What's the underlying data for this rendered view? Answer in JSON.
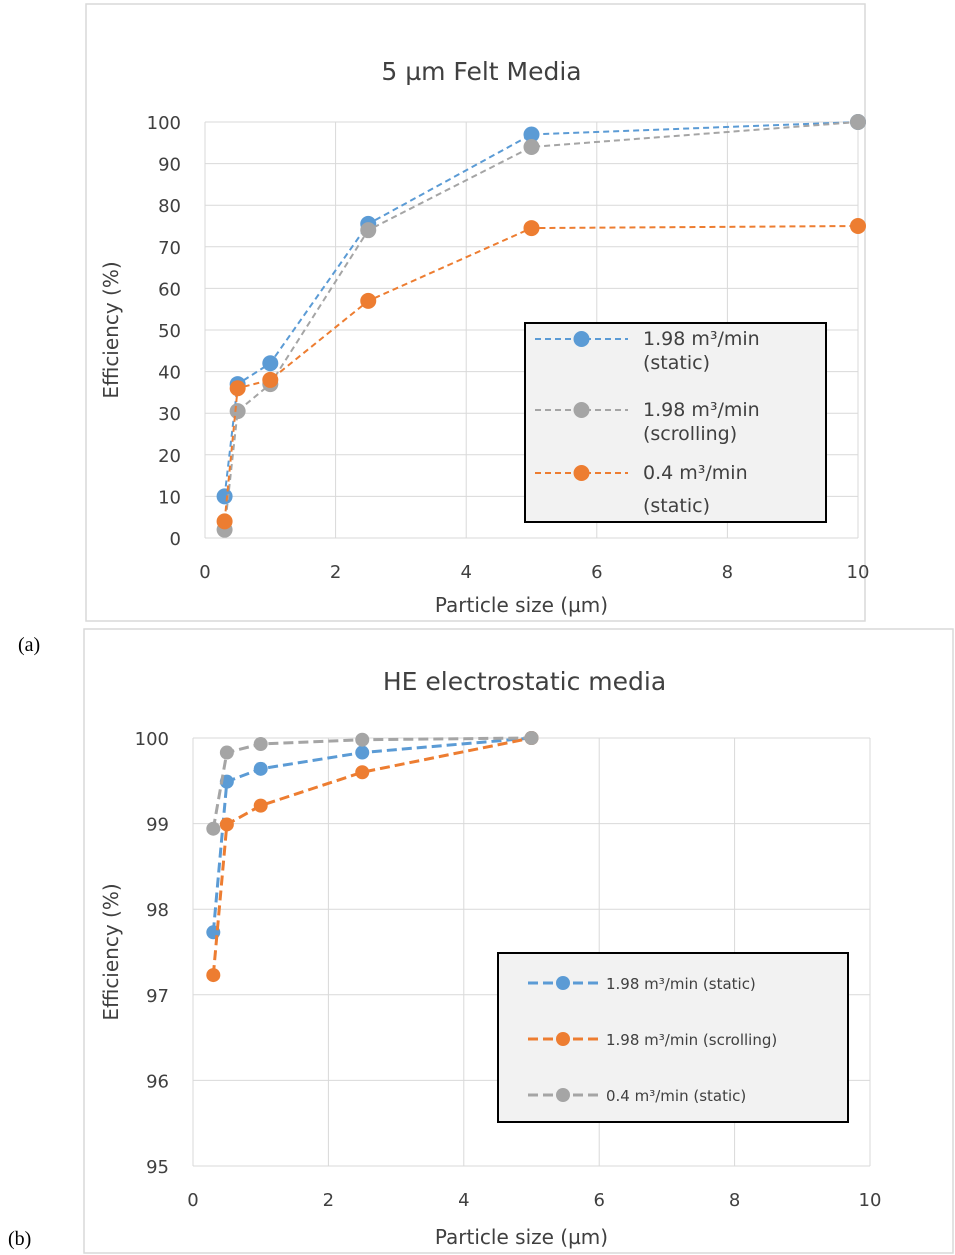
{
  "panel_labels": [
    "(a)",
    "(b)"
  ],
  "colors": {
    "blue": "#5b9bd5",
    "gray": "#a5a5a5",
    "orange": "#ed7d31",
    "grid": "#d9d9d9",
    "text": "#404040"
  },
  "chart_data": [
    {
      "type": "line",
      "title": "5 µm Felt Media",
      "xlabel": "Particle size (µm)",
      "ylabel": "Efficiency (%)",
      "xlim": [
        0,
        10
      ],
      "ylim": [
        0,
        100
      ],
      "xticks": [
        0,
        2,
        4,
        6,
        8,
        10
      ],
      "yticks": [
        0,
        10,
        20,
        30,
        40,
        50,
        60,
        70,
        80,
        90,
        100
      ],
      "grid": true,
      "legend_position": "bottom-right",
      "series": [
        {
          "name": "1.98 m³/min (static)",
          "color": "#5b9bd5",
          "x": [
            0.3,
            0.5,
            1,
            2.5,
            5,
            10
          ],
          "y": [
            10,
            37,
            42,
            75.5,
            97,
            100
          ]
        },
        {
          "name": "1.98 m³/min (scrolling)",
          "color": "#a5a5a5",
          "x": [
            0.3,
            0.5,
            1,
            2.5,
            5,
            10
          ],
          "y": [
            2,
            30.5,
            37,
            74,
            94,
            100
          ]
        },
        {
          "name": "0.4 m³/min (static)",
          "color": "#ed7d31",
          "x": [
            0.3,
            0.5,
            1,
            2.5,
            5,
            10
          ],
          "y": [
            4,
            36,
            38,
            57,
            74.5,
            75
          ]
        }
      ]
    },
    {
      "type": "line",
      "title": "HE electrostatic media",
      "xlabel": "Particle size (µm)",
      "ylabel": "Efficiency (%)",
      "xlim": [
        0,
        10
      ],
      "ylim": [
        95,
        100
      ],
      "xticks": [
        0,
        2,
        4,
        6,
        8,
        10
      ],
      "yticks": [
        95,
        96,
        97,
        98,
        99,
        100
      ],
      "grid": true,
      "legend_position": "bottom-right",
      "series": [
        {
          "name": "1.98 m³/min (static)",
          "color": "#5b9bd5",
          "x": [
            0.3,
            0.5,
            1,
            2.5,
            5
          ],
          "y": [
            97.73,
            99.49,
            99.64,
            99.83,
            100
          ]
        },
        {
          "name": "1.98 m³/min (scrolling)",
          "color": "#ed7d31",
          "x": [
            0.3,
            0.5,
            1,
            2.5,
            5
          ],
          "y": [
            97.23,
            98.99,
            99.21,
            99.6,
            100
          ]
        },
        {
          "name": "0.4 m³/min (static)",
          "color": "#a5a5a5",
          "x": [
            0.3,
            0.5,
            1,
            2.5,
            5
          ],
          "y": [
            98.94,
            99.83,
            99.93,
            99.98,
            100
          ]
        }
      ]
    }
  ]
}
